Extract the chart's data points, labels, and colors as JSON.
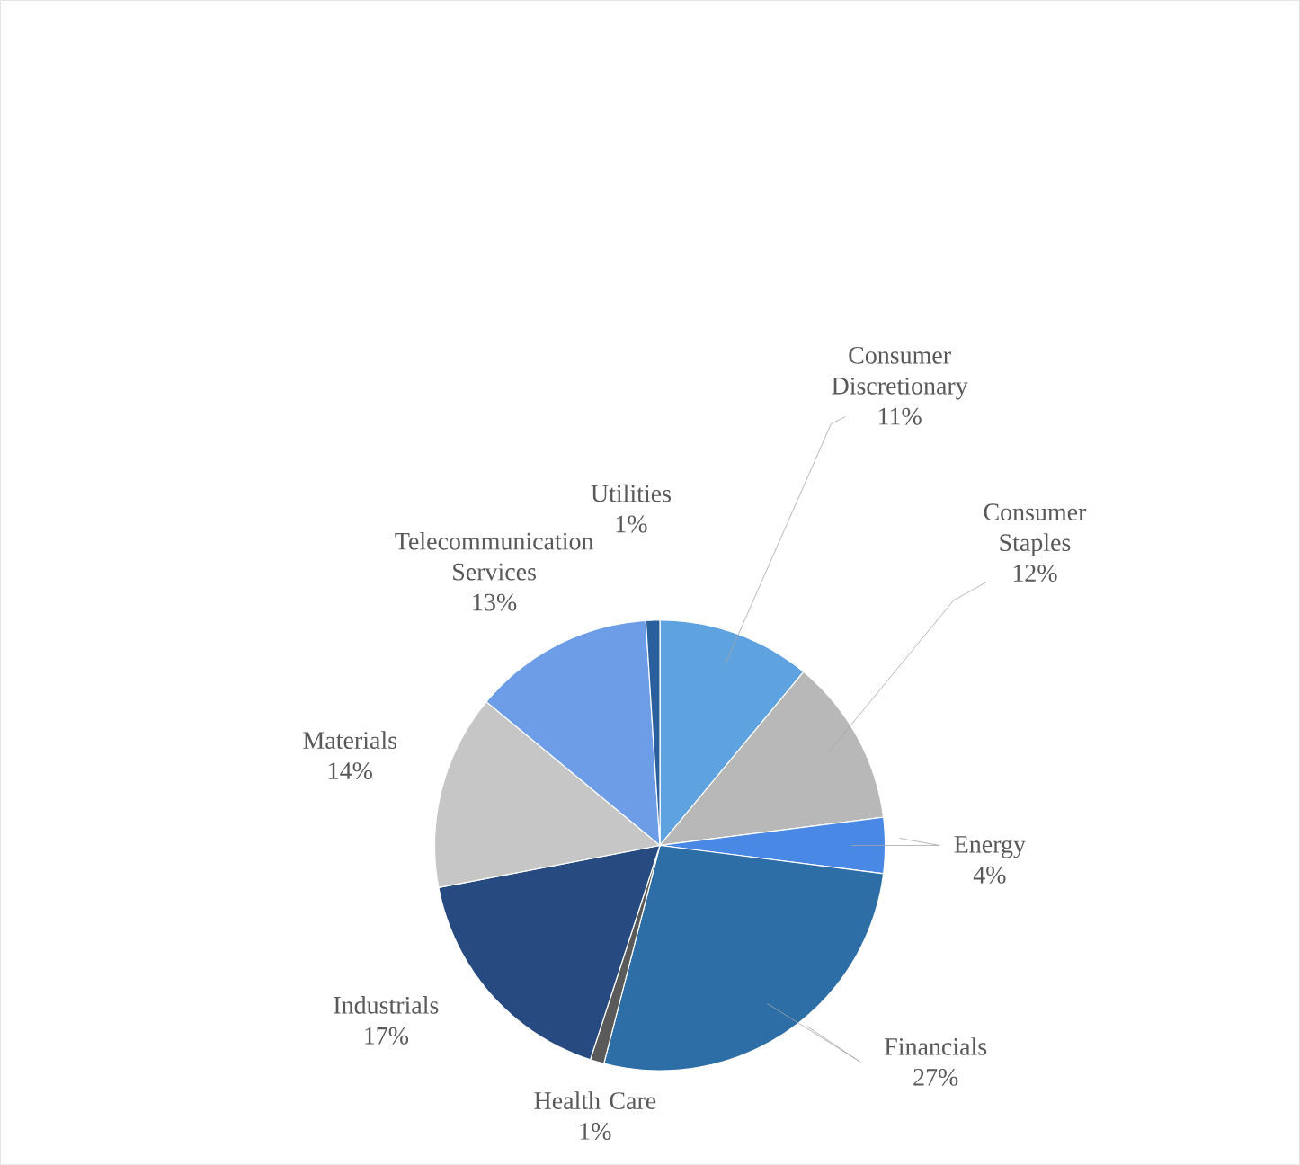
{
  "chart_data": {
    "type": "pie",
    "categories": [
      "Consumer Discretionary",
      "Consumer Staples",
      "Energy",
      "Financials",
      "Health Care",
      "Industrials",
      "Materials",
      "Telecommunication Services",
      "Utilities"
    ],
    "values": [
      11,
      12,
      4,
      27,
      1,
      17,
      14,
      13,
      1
    ],
    "value_labels": [
      "11%",
      "12%",
      "4%",
      "27%",
      "1%",
      "17%",
      "14%",
      "13%",
      "1%"
    ],
    "colors": [
      "#5fa2e0",
      "#b8b8b8",
      "#4a88e6",
      "#2e6ea6",
      "#5a5a5a",
      "#274a80",
      "#c6c6c6",
      "#6c9de6",
      "#2a5f9e"
    ]
  }
}
